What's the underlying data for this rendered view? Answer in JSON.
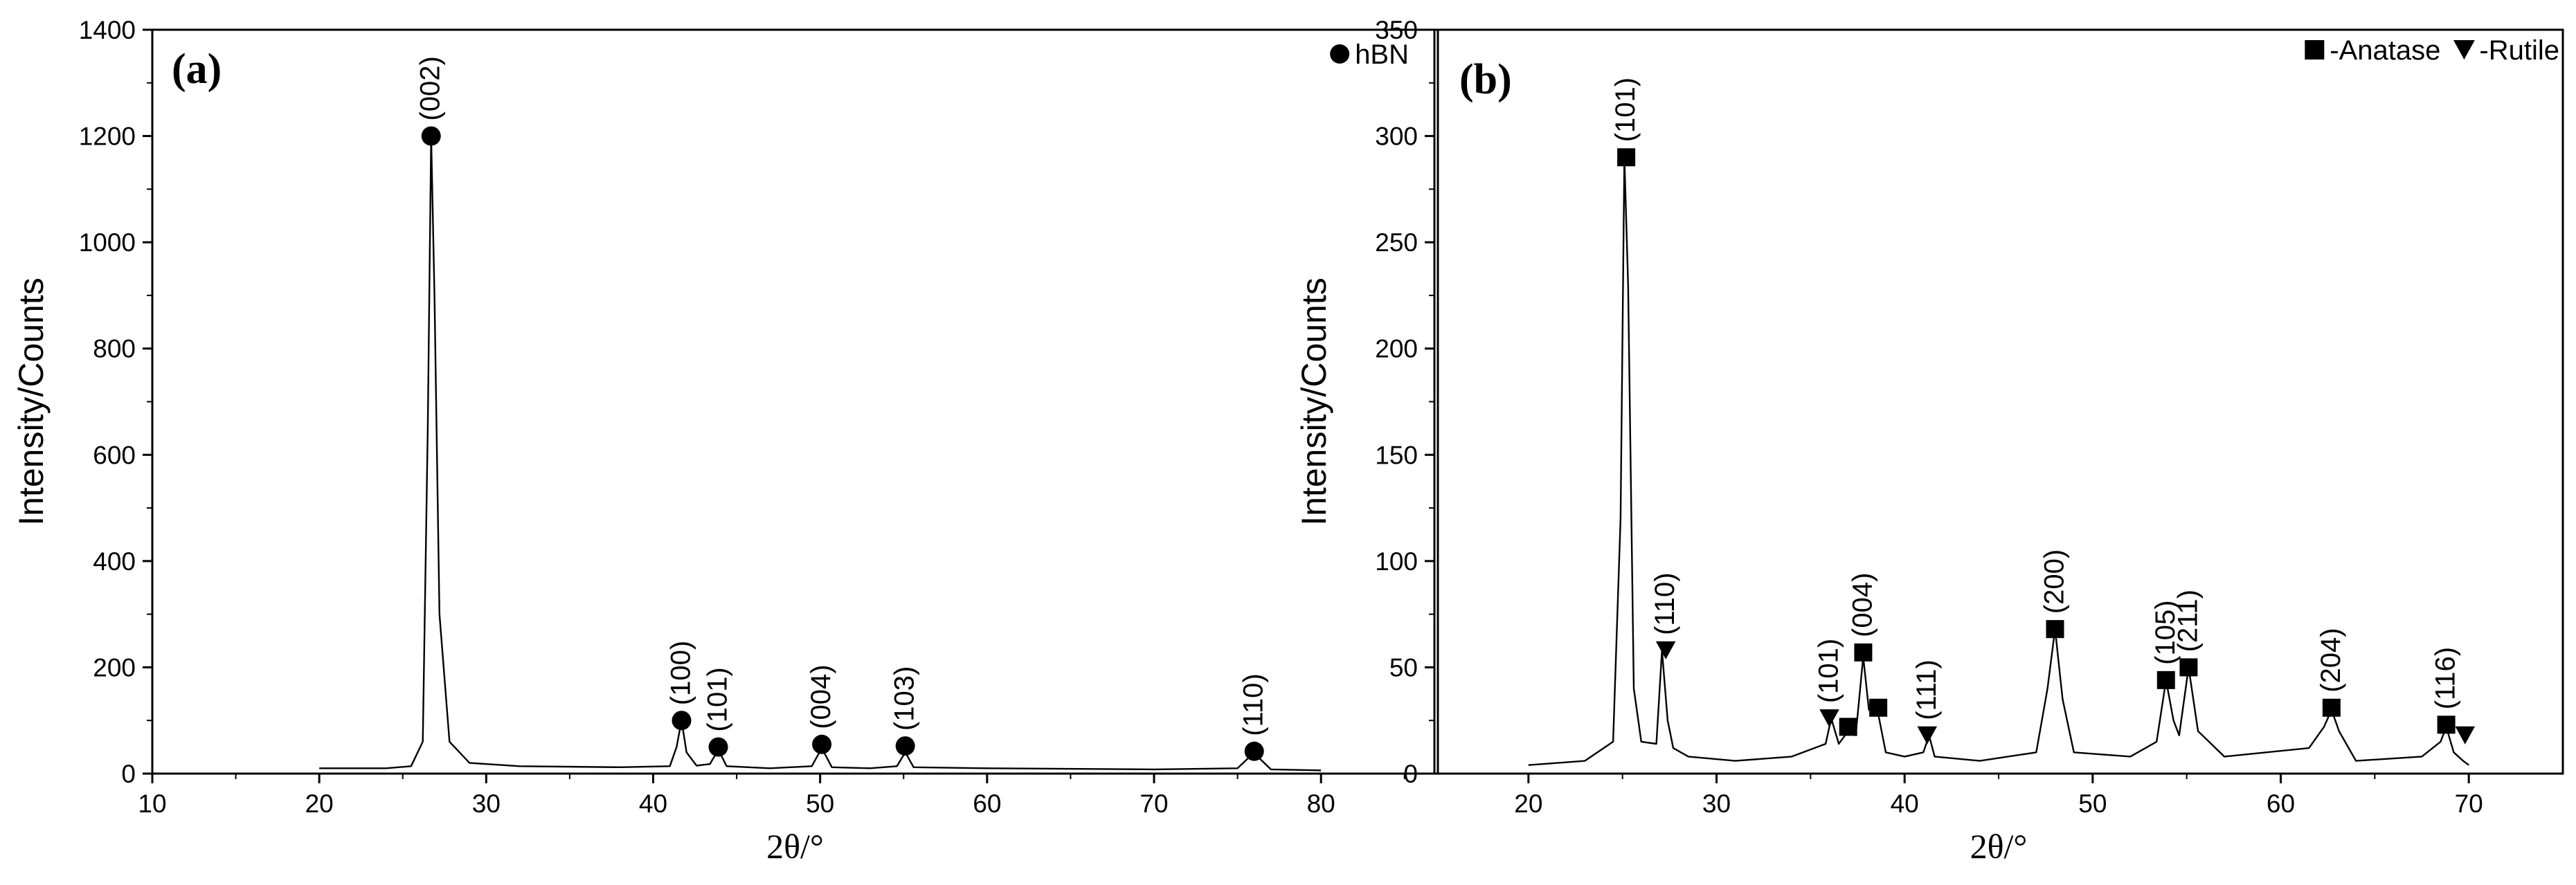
{
  "chart_data": [
    {
      "type": "line",
      "panel_label": "(a)",
      "xlabel": "2θ/°",
      "ylabel": "Intensity/Counts",
      "xlim": [
        10,
        87
      ],
      "ylim": [
        0,
        1400
      ],
      "xticks": [
        10,
        20,
        30,
        40,
        50,
        60,
        70,
        80
      ],
      "yticks": [
        0,
        200,
        400,
        600,
        800,
        1000,
        1200,
        1400
      ],
      "grid": false,
      "legend": {
        "position": "top-right",
        "entries": [
          {
            "marker": "circle",
            "label": "hBN"
          }
        ]
      },
      "series": [
        {
          "x": [
            20,
            24,
            25.5,
            26.2,
            26.5,
            26.7,
            26.9,
            27.2,
            27.8,
            29,
            32,
            38,
            41,
            41.4,
            41.7,
            42,
            42.6,
            43.4,
            43.9,
            44.4,
            47,
            49.5,
            50.1,
            50.7,
            53,
            54.6,
            55.1,
            55.6,
            60,
            70,
            75,
            75.6,
            76,
            76.4,
            77,
            80
          ],
          "y": [
            10,
            10,
            14,
            60,
            650,
            1200,
            900,
            300,
            60,
            20,
            14,
            12,
            14,
            50,
            100,
            40,
            15,
            18,
            45,
            14,
            10,
            14,
            48,
            12,
            10,
            14,
            40,
            12,
            10,
            8,
            10,
            28,
            38,
            26,
            8,
            6
          ]
        }
      ],
      "peaks": [
        {
          "x": 26.7,
          "y": 1200,
          "marker": "circle",
          "label": "(002)"
        },
        {
          "x": 41.7,
          "y": 100,
          "marker": "circle",
          "label": "(100)"
        },
        {
          "x": 43.9,
          "y": 50,
          "marker": "circle",
          "label": "(101)"
        },
        {
          "x": 50.1,
          "y": 55,
          "marker": "circle",
          "label": "(004)"
        },
        {
          "x": 55.1,
          "y": 52,
          "marker": "circle",
          "label": "(103)"
        },
        {
          "x": 76.0,
          "y": 42,
          "marker": "circle",
          "label": "(110)"
        }
      ]
    },
    {
      "type": "line",
      "panel_label": "(b)",
      "xlabel": "2θ/°",
      "ylabel": "Intensity/Counts",
      "xlim": [
        15,
        75
      ],
      "ylim": [
        0,
        350
      ],
      "xticks": [
        20,
        30,
        40,
        50,
        60,
        70
      ],
      "yticks": [
        0,
        50,
        100,
        150,
        200,
        250,
        300,
        350
      ],
      "grid": false,
      "legend": {
        "position": "top-right",
        "entries": [
          {
            "marker": "square",
            "label": "-Anatase"
          },
          {
            "marker": "triangle-down",
            "label": "-Rutile"
          }
        ]
      },
      "series": [
        {
          "x": [
            20,
            23,
            24.5,
            24.9,
            25.1,
            25.3,
            25.6,
            26,
            26.8,
            27.1,
            27.4,
            27.7,
            28.5,
            31,
            34,
            35.8,
            36.1,
            36.5,
            37,
            37.4,
            37.8,
            38.1,
            38.6,
            39,
            40,
            41,
            41.3,
            41.6,
            44,
            47,
            47.6,
            48,
            48.4,
            49,
            52,
            53.4,
            53.9,
            54.3,
            54.6,
            55.1,
            55.6,
            57,
            61.5,
            62.3,
            62.7,
            63.1,
            64,
            67.5,
            68.5,
            68.8,
            69.2,
            69.7,
            70
          ],
          "y": [
            4,
            6,
            15,
            120,
            290,
            230,
            40,
            15,
            14,
            58,
            25,
            12,
            8,
            6,
            8,
            14,
            26,
            14,
            20,
            18,
            55,
            30,
            28,
            10,
            8,
            10,
            18,
            8,
            6,
            10,
            40,
            68,
            35,
            10,
            8,
            15,
            44,
            25,
            18,
            50,
            20,
            8,
            12,
            22,
            30,
            20,
            6,
            8,
            15,
            22,
            10,
            6,
            4
          ]
        }
      ],
      "peaks": [
        {
          "x": 25.2,
          "y": 290,
          "marker": "square",
          "label": "(101)"
        },
        {
          "x": 27.3,
          "y": 58,
          "marker": "triangle-down",
          "label": "(110)"
        },
        {
          "x": 36.0,
          "y": 26,
          "marker": "triangle-down",
          "label": "(101)"
        },
        {
          "x": 37.0,
          "y": 22,
          "marker": "square",
          "label": ""
        },
        {
          "x": 37.8,
          "y": 57,
          "marker": "square",
          "label": "(004)"
        },
        {
          "x": 38.6,
          "y": 31,
          "marker": "square",
          "label": ""
        },
        {
          "x": 41.2,
          "y": 18,
          "marker": "triangle-down",
          "label": "(111)"
        },
        {
          "x": 48.0,
          "y": 68,
          "marker": "square",
          "label": "(200)"
        },
        {
          "x": 53.9,
          "y": 44,
          "marker": "square",
          "label": "(105)"
        },
        {
          "x": 55.1,
          "y": 50,
          "marker": "square",
          "label": "(211)"
        },
        {
          "x": 62.7,
          "y": 31,
          "marker": "square",
          "label": "(204)"
        },
        {
          "x": 68.8,
          "y": 23,
          "marker": "square",
          "label": "(116)"
        },
        {
          "x": 69.8,
          "y": 18,
          "marker": "triangle-down",
          "label": ""
        }
      ]
    }
  ]
}
